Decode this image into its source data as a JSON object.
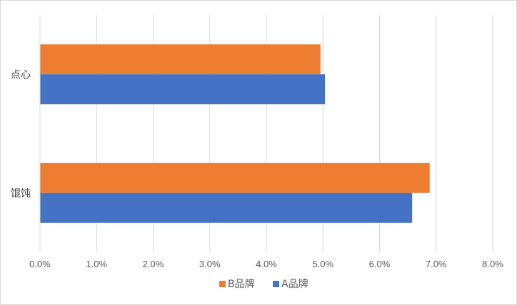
{
  "chart_data": {
    "type": "bar",
    "orientation": "horizontal",
    "categories": [
      "点心",
      "馄饨"
    ],
    "series": [
      {
        "name": "B品牌",
        "values": [
          4.95,
          6.88
        ],
        "color": "#ED7D31"
      },
      {
        "name": "A品牌",
        "values": [
          5.03,
          6.57
        ],
        "color": "#4472C4"
      }
    ],
    "xlim": [
      0,
      8
    ],
    "xticks": [
      "0.0%",
      "1.0%",
      "2.0%",
      "3.0%",
      "4.0%",
      "5.0%",
      "6.0%",
      "7.0%",
      "8.0%"
    ],
    "grid": true,
    "legend_position": "bottom"
  }
}
